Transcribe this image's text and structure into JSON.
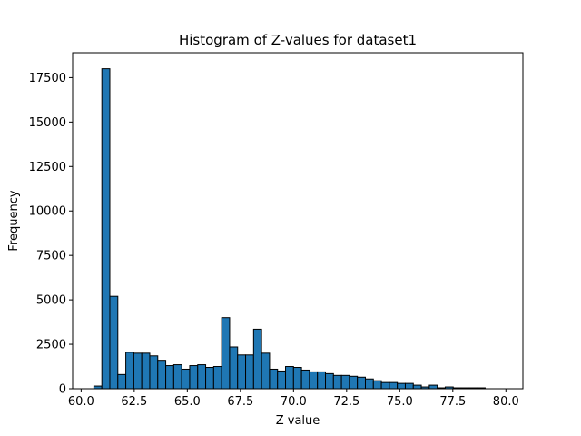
{
  "chart_data": {
    "type": "bar",
    "title": "Histogram of Z-values for dataset1",
    "xlabel": "Z value",
    "ylabel": "Frequency",
    "xlim": [
      59.6,
      80.8
    ],
    "ylim": [
      0,
      18900
    ],
    "xticks": [
      60.0,
      62.5,
      65.0,
      67.5,
      70.0,
      72.5,
      75.0,
      77.5,
      80.0
    ],
    "xtick_labels": [
      "60.0",
      "62.5",
      "65.0",
      "67.5",
      "70.0",
      "72.5",
      "75.0",
      "77.5",
      "80.0"
    ],
    "yticks": [
      0,
      2500,
      5000,
      7500,
      10000,
      12500,
      15000,
      17500
    ],
    "ytick_labels": [
      "0",
      "2500",
      "5000",
      "7500",
      "10000",
      "12500",
      "15000",
      "17500"
    ],
    "grid": false,
    "bar_color": "#1f77b4",
    "edge_color": "#000000",
    "bin_width": 0.376,
    "bin_start": 60.6,
    "values": [
      150,
      18000,
      5200,
      800,
      2050,
      2000,
      2000,
      1850,
      1600,
      1300,
      1350,
      1100,
      1300,
      1350,
      1200,
      1250,
      4000,
      2350,
      1900,
      1900,
      3350,
      2000,
      1100,
      1000,
      1250,
      1200,
      1050,
      950,
      950,
      850,
      750,
      750,
      700,
      650,
      550,
      450,
      350,
      350,
      300,
      300,
      200,
      100,
      200,
      50,
      100,
      50,
      50,
      50,
      50
    ]
  }
}
